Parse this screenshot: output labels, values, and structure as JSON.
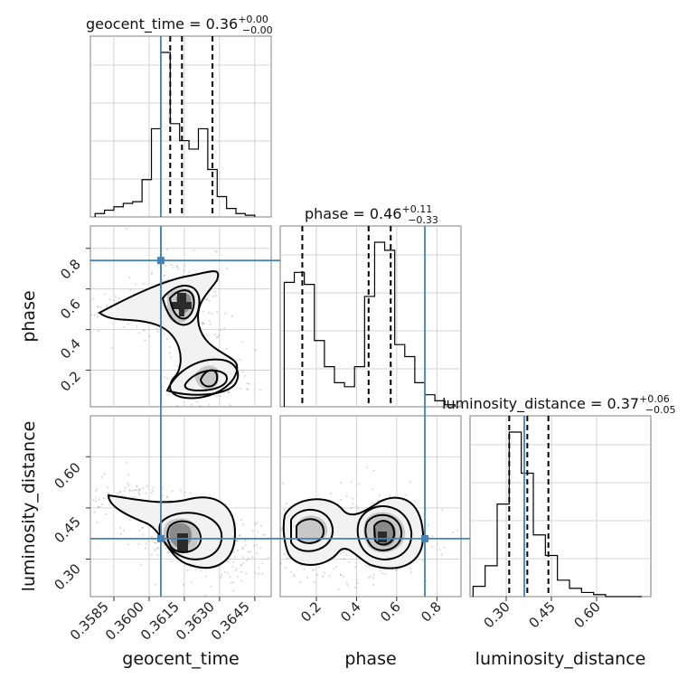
{
  "chart_data": [
    {
      "type": "histogram",
      "panel": "geocent_time-marginal",
      "title_param": "geocent_time",
      "title_median": "0.36",
      "title_plus": "+0.00",
      "title_minus": "−0.00",
      "x_range": [
        0.3575,
        0.3652
      ],
      "x_ticks": [
        0.3585,
        0.36,
        0.3615,
        0.363,
        0.3645
      ],
      "bins": [
        0.3577,
        0.3581,
        0.3585,
        0.3589,
        0.3593,
        0.3597,
        0.3601,
        0.3605,
        0.3609,
        0.3613,
        0.3617,
        0.3621,
        0.3625,
        0.3629,
        0.3633,
        0.3637,
        0.3641,
        0.3645
      ],
      "density": [
        0.02,
        0.04,
        0.06,
        0.08,
        0.09,
        0.22,
        0.52,
        0.97,
        0.55,
        0.45,
        0.4,
        0.52,
        0.28,
        0.12,
        0.05,
        0.02,
        0.01
      ],
      "quantiles": [
        0.3609,
        0.3614,
        0.3627
      ],
      "truth": 0.3605
    },
    {
      "type": "histogram",
      "panel": "phase-marginal",
      "title_param": "phase",
      "title_median": "0.46",
      "title_plus": "+0.11",
      "title_minus": "−0.33",
      "x_range": [
        0.02,
        0.92
      ],
      "x_ticks": [
        0.2,
        0.4,
        0.6,
        0.8
      ],
      "bins": [
        0.04,
        0.09,
        0.14,
        0.19,
        0.24,
        0.29,
        0.34,
        0.39,
        0.44,
        0.49,
        0.54,
        0.59,
        0.64,
        0.69,
        0.74,
        0.79,
        0.84,
        0.89
      ],
      "density": [
        0.62,
        0.67,
        0.61,
        0.33,
        0.2,
        0.12,
        0.1,
        0.2,
        0.55,
        0.82,
        0.78,
        0.31,
        0.25,
        0.12,
        0.06,
        0.03,
        0.01
      ],
      "quantiles": [
        0.13,
        0.46,
        0.57
      ],
      "truth": 0.74
    },
    {
      "type": "histogram",
      "panel": "luminosity_distance-marginal",
      "title_param": "luminosity_distance",
      "title_median": "0.37",
      "title_plus": "+0.06",
      "title_minus": "−0.05",
      "x_range": [
        0.18,
        0.78
      ],
      "x_ticks": [
        0.3,
        0.45,
        0.6
      ],
      "bins": [
        0.19,
        0.23,
        0.27,
        0.31,
        0.35,
        0.39,
        0.43,
        0.47,
        0.51,
        0.55,
        0.59,
        0.63,
        0.67,
        0.71,
        0.75
      ],
      "density": [
        0.05,
        0.15,
        0.45,
        0.8,
        0.6,
        0.3,
        0.2,
        0.08,
        0.04,
        0.02,
        0.01,
        0.0,
        0.0,
        0.0
      ],
      "quantiles": [
        0.31,
        0.37,
        0.44
      ],
      "truth": 0.36
    },
    {
      "type": "contour",
      "panel": "phase-vs-geocent_time",
      "x_param": "geocent_time",
      "y_param": "phase",
      "x_range": [
        0.3575,
        0.3652
      ],
      "y_range": [
        0.02,
        0.91
      ],
      "y_ticks": [
        0.2,
        0.4,
        0.6,
        0.8
      ],
      "truth": [
        0.3605,
        0.74
      ]
    },
    {
      "type": "contour",
      "panel": "luminosity_distance-vs-geocent_time",
      "x_param": "geocent_time",
      "y_param": "luminosity_distance",
      "x_range": [
        0.3575,
        0.3652
      ],
      "y_range": [
        0.19,
        0.72
      ],
      "y_ticks": [
        0.3,
        0.45,
        0.6
      ],
      "truth": [
        0.3605,
        0.36
      ]
    },
    {
      "type": "contour",
      "panel": "luminosity_distance-vs-phase",
      "x_param": "phase",
      "y_param": "luminosity_distance",
      "x_range": [
        0.02,
        0.92
      ],
      "y_range": [
        0.19,
        0.72
      ],
      "truth": [
        0.74,
        0.36
      ]
    }
  ],
  "colors": {
    "truth": "#4682b4",
    "hist": "#000000",
    "grid": "#c8c8c8"
  },
  "labels": {
    "x_geocent_time": "geocent_time",
    "x_phase": "phase",
    "x_luminosity_distance": "luminosity_distance",
    "y_phase": "phase",
    "y_luminosity_distance": "luminosity_distance"
  },
  "titles": {
    "geocent_time": "geocent_time = 0.36",
    "phase": "phase = 0.46",
    "luminosity_distance": "luminosity_distance = 0.37"
  },
  "tick_text": {
    "geocent_time": [
      "0.3585",
      "0.3600",
      "0.3615",
      "0.3630",
      "0.3645"
    ],
    "phase": [
      "0.2",
      "0.4",
      "0.6",
      "0.8"
    ],
    "luminosity_distance": [
      "0.30",
      "0.45",
      "0.60"
    ]
  }
}
